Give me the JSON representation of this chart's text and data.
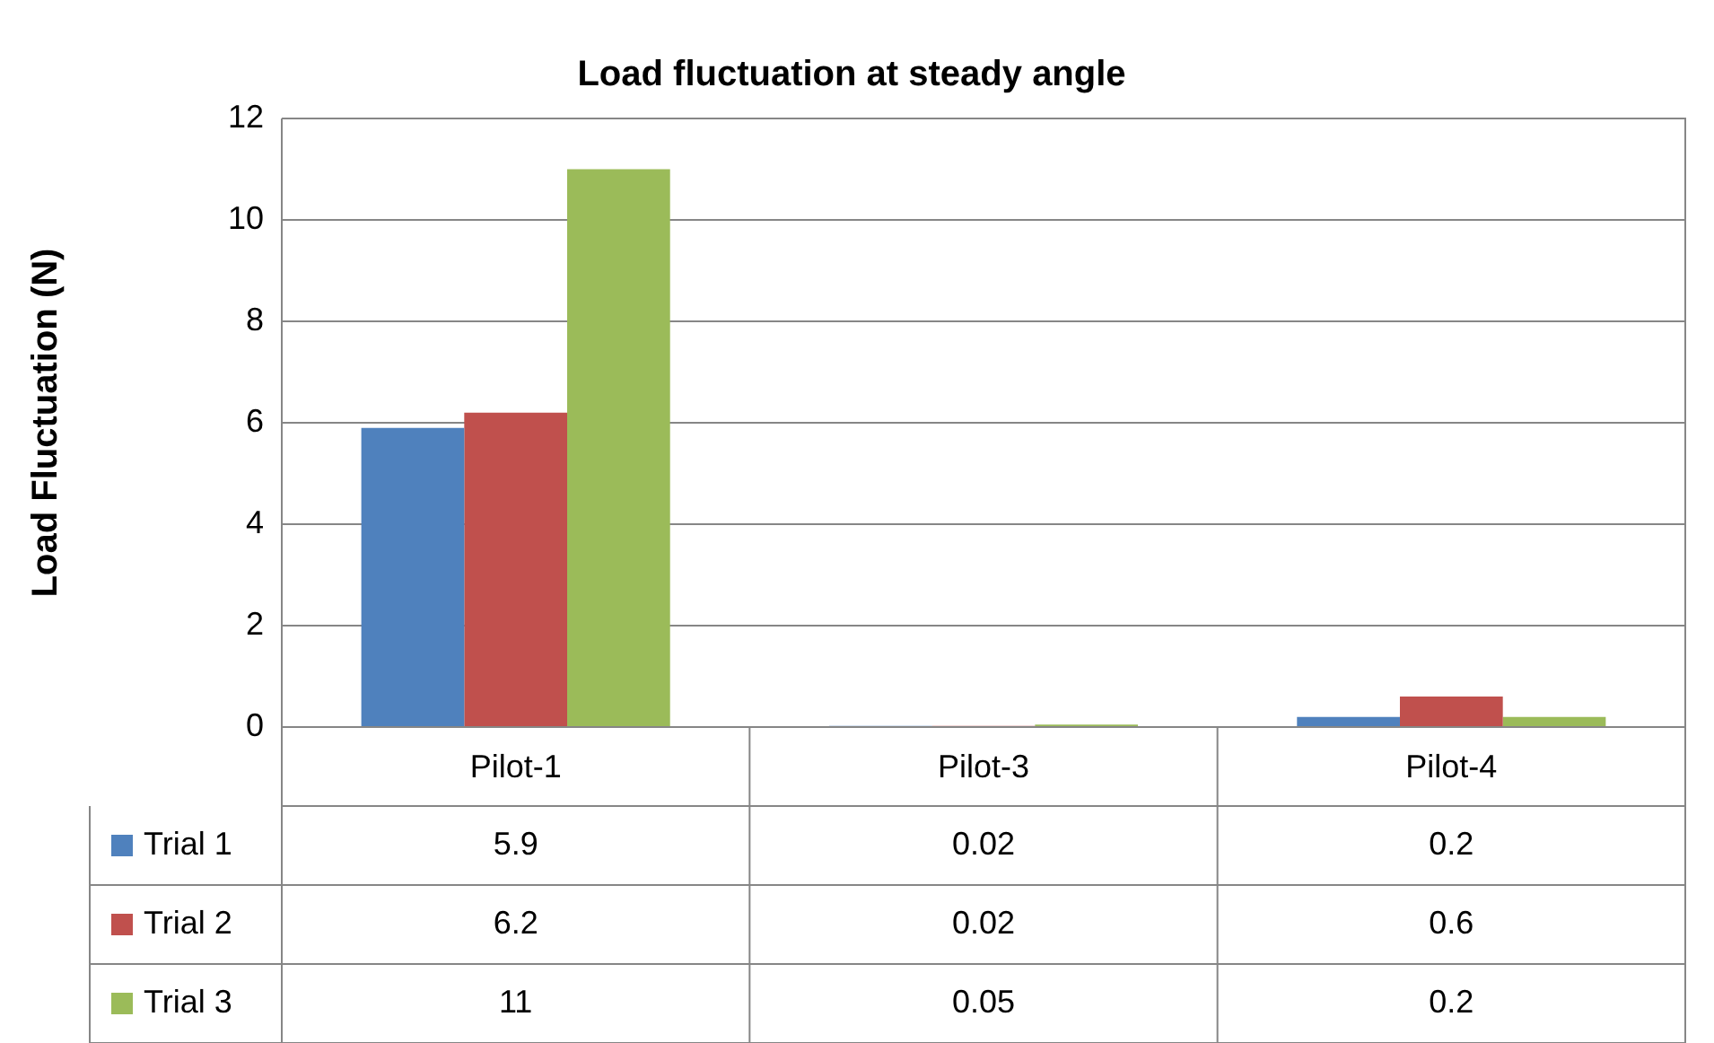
{
  "chart_data": {
    "type": "bar",
    "title": "Load fluctuation at steady angle",
    "ylabel": "Load Fluctuation (N)",
    "categories": [
      "Pilot-1",
      "Pilot-3",
      "Pilot-4"
    ],
    "series": [
      {
        "name": "Trial 1",
        "color": "#4f81bd",
        "values": [
          5.9,
          0.02,
          0.2
        ]
      },
      {
        "name": "Trial 2",
        "color": "#c0504d",
        "values": [
          6.2,
          0.02,
          0.6
        ]
      },
      {
        "name": "Trial 3",
        "color": "#9bbb59",
        "values": [
          11,
          0.05,
          0.2
        ]
      }
    ],
    "ylim": [
      0,
      12
    ],
    "yticks": [
      0,
      2,
      4,
      6,
      8,
      10,
      12
    ],
    "grid": "y",
    "legend": "bottom",
    "data_labels": true
  }
}
